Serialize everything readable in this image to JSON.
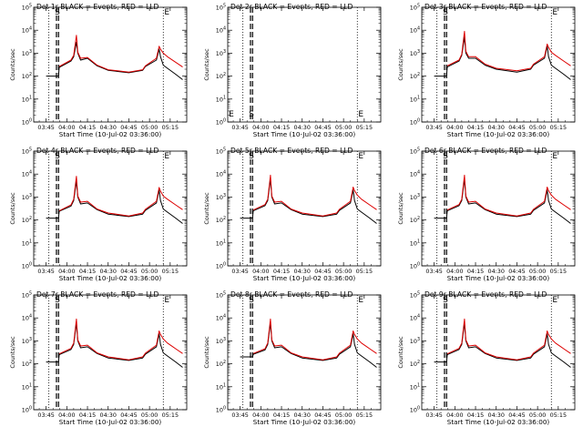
{
  "figure": {
    "xlabel": "Start Time (10-Jul-02 03:36:00)",
    "ylabel": "Counts/sec",
    "marker_S": "S",
    "marker_E": "E"
  },
  "chart_data": [
    {
      "type": "line",
      "title": "Det 1r BLACK = Events, RED = LLD",
      "xlabel": "Start Time (10-Jul-02 03:36:00)",
      "ylabel": "Counts/sec",
      "yscale": "log",
      "ylim": [
        1,
        100000
      ],
      "xticks": [
        "03:45",
        "04:00",
        "04:15",
        "04:30",
        "04:45",
        "05:00",
        "05:15"
      ],
      "yticks": [
        "10^0",
        "10^1",
        "10^2",
        "10^3",
        "10^4",
        "10^5"
      ],
      "x_minutes": [
        0,
        9,
        9.5,
        18,
        20,
        22,
        23,
        25,
        30,
        37,
        45,
        60,
        70,
        72,
        80,
        82,
        83,
        85,
        88,
        94,
        99
      ],
      "series": [
        {
          "name": "BLACK = Events",
          "color": "#000000",
          "values": [
            100,
            100,
            240,
            450,
            700,
            3000,
            1000,
            500,
            600,
            280,
            180,
            140,
            180,
            260,
            500,
            1500,
            700,
            300,
            220,
            120,
            70
          ]
        },
        {
          "name": "RED = LLD",
          "color": "#dd0000",
          "values": [
            null,
            null,
            260,
            500,
            800,
            6000,
            1100,
            600,
            650,
            300,
            190,
            150,
            190,
            280,
            600,
            2000,
            1500,
            1000,
            700,
            400,
            250
          ]
        }
      ]
    },
    {
      "type": "line",
      "title": "Det 2r BLACK = Events, RED = LLD",
      "xlabel": "Start Time (10-Jul-02 03:36:00)",
      "ylabel": "Counts/sec",
      "yscale": "log",
      "ylim": [
        1,
        100000
      ],
      "xticks": [
        "03:45",
        "04:00",
        "04:15",
        "04:30",
        "04:45",
        "05:00",
        "05:15"
      ],
      "yticks": [
        "10^0",
        "10^1",
        "10^2",
        "10^3",
        "10^4",
        "10^5"
      ],
      "x_minutes": [],
      "series": [
        {
          "name": "BLACK = Events",
          "color": "#000000",
          "values": []
        },
        {
          "name": "RED = LLD",
          "color": "#dd0000",
          "values": []
        }
      ]
    },
    {
      "type": "line",
      "title": "Det 3r BLACK = Events, RED = LLD",
      "xlabel": "Start Time (10-Jul-02 03:36:00)",
      "ylabel": "Counts/sec",
      "yscale": "log",
      "ylim": [
        1,
        100000
      ],
      "xticks": [
        "03:45",
        "04:00",
        "04:15",
        "04:30",
        "04:45",
        "05:00",
        "05:15"
      ],
      "yticks": [
        "10^0",
        "10^1",
        "10^2",
        "10^3",
        "10^4",
        "10^5"
      ],
      "x_minutes": [
        0,
        9,
        9.5,
        18,
        20,
        22,
        23,
        25,
        30,
        37,
        45,
        60,
        70,
        72,
        80,
        82,
        83,
        85,
        88,
        94,
        99
      ],
      "series": [
        {
          "name": "BLACK = Events",
          "color": "#000000",
          "values": [
            100,
            100,
            250,
            450,
            800,
            5000,
            1000,
            600,
            600,
            300,
            200,
            150,
            200,
            300,
            600,
            2000,
            700,
            300,
            220,
            120,
            70
          ]
        },
        {
          "name": "RED = LLD",
          "color": "#dd0000",
          "values": [
            null,
            null,
            280,
            500,
            900,
            9000,
            1200,
            700,
            700,
            330,
            220,
            170,
            220,
            330,
            700,
            2500,
            1800,
            1100,
            800,
            450,
            280
          ]
        }
      ]
    },
    {
      "type": "line",
      "title": "Det 4r BLACK = Events, RED = LLD",
      "xlabel": "Start Time (10-Jul-02 03:36:00)",
      "ylabel": "Counts/sec",
      "yscale": "log",
      "ylim": [
        1,
        100000
      ],
      "xticks": [
        "03:45",
        "04:00",
        "04:15",
        "04:30",
        "04:45",
        "05:00",
        "05:15"
      ],
      "yticks": [
        "10^0",
        "10^1",
        "10^2",
        "10^3",
        "10^4",
        "10^5"
      ],
      "x_minutes": [
        0,
        9,
        9.5,
        18,
        20,
        22,
        23,
        25,
        30,
        37,
        45,
        60,
        70,
        72,
        80,
        82,
        83,
        85,
        88,
        94,
        99
      ],
      "series": [
        {
          "name": "BLACK = Events",
          "color": "#000000",
          "values": [
            120,
            120,
            240,
            400,
            700,
            5000,
            1000,
            500,
            550,
            280,
            180,
            140,
            180,
            260,
            550,
            2000,
            700,
            300,
            220,
            120,
            70
          ]
        },
        {
          "name": "RED = LLD",
          "color": "#dd0000",
          "values": [
            null,
            null,
            250,
            450,
            800,
            8000,
            1100,
            600,
            650,
            300,
            200,
            150,
            200,
            290,
            650,
            2600,
            1800,
            1100,
            800,
            450,
            280
          ]
        }
      ]
    },
    {
      "type": "line",
      "title": "Det 5r BLACK = Events, RED = LLD",
      "xlabel": "Start Time (10-Jul-02 03:36:00)",
      "ylabel": "Counts/sec",
      "yscale": "log",
      "ylim": [
        1,
        100000
      ],
      "xticks": [
        "03:45",
        "04:00",
        "04:15",
        "04:30",
        "04:45",
        "05:00",
        "05:15"
      ],
      "yticks": [
        "10^0",
        "10^1",
        "10^2",
        "10^3",
        "10^4",
        "10^5"
      ],
      "x_minutes": [
        0,
        9,
        9.5,
        18,
        20,
        22,
        23,
        25,
        30,
        37,
        45,
        60,
        70,
        72,
        80,
        82,
        83,
        85,
        88,
        94,
        99
      ],
      "series": [
        {
          "name": "BLACK = Events",
          "color": "#000000",
          "values": [
            120,
            120,
            250,
            420,
            700,
            6000,
            1000,
            500,
            550,
            280,
            180,
            140,
            180,
            260,
            550,
            2000,
            700,
            300,
            220,
            120,
            70
          ]
        },
        {
          "name": "RED = LLD",
          "color": "#dd0000",
          "values": [
            null,
            null,
            270,
            470,
            800,
            9000,
            1100,
            600,
            650,
            300,
            200,
            150,
            200,
            290,
            650,
            2700,
            1900,
            1200,
            800,
            450,
            280
          ]
        }
      ]
    },
    {
      "type": "line",
      "title": "Det 6r BLACK = Events, RED = LLD",
      "xlabel": "Start Time (10-Jul-02 03:36:00)",
      "ylabel": "Counts/sec",
      "yscale": "log",
      "ylim": [
        1,
        100000
      ],
      "xticks": [
        "03:45",
        "04:00",
        "04:15",
        "04:30",
        "04:45",
        "05:00",
        "05:15"
      ],
      "yticks": [
        "10^0",
        "10^1",
        "10^2",
        "10^3",
        "10^4",
        "10^5"
      ],
      "x_minutes": [
        0,
        9,
        9.5,
        18,
        20,
        22,
        23,
        25,
        30,
        37,
        45,
        60,
        70,
        72,
        80,
        82,
        83,
        85,
        88,
        94,
        99
      ],
      "series": [
        {
          "name": "BLACK = Events",
          "color": "#000000",
          "values": [
            120,
            120,
            250,
            420,
            700,
            6000,
            1000,
            500,
            550,
            280,
            180,
            140,
            180,
            260,
            550,
            2000,
            700,
            300,
            220,
            120,
            70
          ]
        },
        {
          "name": "RED = LLD",
          "color": "#dd0000",
          "values": [
            null,
            null,
            270,
            470,
            800,
            9000,
            1100,
            600,
            650,
            300,
            200,
            150,
            200,
            290,
            650,
            2700,
            1900,
            1200,
            800,
            450,
            280
          ]
        }
      ]
    },
    {
      "type": "line",
      "title": "Det 7r BLACK = Events, RED = LLD",
      "xlabel": "Start Time (10-Jul-02 03:36:00)",
      "ylabel": "Counts/sec",
      "yscale": "log",
      "ylim": [
        1,
        100000
      ],
      "xticks": [
        "03:45",
        "04:00",
        "04:15",
        "04:30",
        "04:45",
        "05:00",
        "05:15"
      ],
      "yticks": [
        "10^0",
        "10^1",
        "10^2",
        "10^3",
        "10^4",
        "10^5"
      ],
      "x_minutes": [
        0,
        9,
        9.5,
        18,
        20,
        22,
        23,
        25,
        30,
        37,
        45,
        60,
        70,
        72,
        80,
        82,
        83,
        85,
        88,
        94,
        99
      ],
      "series": [
        {
          "name": "BLACK = Events",
          "color": "#000000",
          "values": [
            120,
            120,
            250,
            420,
            700,
            6000,
            1000,
            500,
            550,
            280,
            180,
            140,
            180,
            260,
            550,
            2000,
            700,
            300,
            220,
            120,
            70
          ]
        },
        {
          "name": "RED = LLD",
          "color": "#dd0000",
          "values": [
            null,
            null,
            270,
            470,
            800,
            9000,
            1100,
            600,
            650,
            300,
            200,
            150,
            200,
            290,
            650,
            2700,
            1900,
            1200,
            800,
            450,
            280
          ]
        }
      ]
    },
    {
      "type": "line",
      "title": "Det 8r BLACK = Events, RED = LLD",
      "xlabel": "Start Time (10-Jul-02 03:36:00)",
      "ylabel": "Counts/sec",
      "yscale": "log",
      "ylim": [
        1,
        100000
      ],
      "xticks": [
        "03:45",
        "04:00",
        "04:15",
        "04:30",
        "04:45",
        "05:00",
        "05:15"
      ],
      "yticks": [
        "10^0",
        "10^1",
        "10^2",
        "10^3",
        "10^4",
        "10^5"
      ],
      "x_minutes": [
        0,
        9,
        9.5,
        18,
        20,
        22,
        23,
        25,
        30,
        37,
        45,
        60,
        70,
        72,
        80,
        82,
        83,
        85,
        88,
        94,
        99
      ],
      "series": [
        {
          "name": "BLACK = Events",
          "color": "#000000",
          "values": [
            200,
            200,
            260,
            400,
            700,
            6000,
            1000,
            500,
            550,
            280,
            180,
            140,
            180,
            260,
            550,
            2000,
            700,
            300,
            220,
            120,
            70
          ]
        },
        {
          "name": "RED = LLD",
          "color": "#dd0000",
          "values": [
            null,
            null,
            280,
            450,
            800,
            9000,
            1100,
            600,
            650,
            300,
            200,
            150,
            200,
            290,
            650,
            2700,
            1900,
            1200,
            800,
            450,
            280
          ]
        }
      ]
    },
    {
      "type": "line",
      "title": "Det 9r BLACK = Events, RED = LLD",
      "xlabel": "Start Time (10-Jul-02 03:36:00)",
      "ylabel": "Counts/sec",
      "yscale": "log",
      "ylim": [
        1,
        100000
      ],
      "xticks": [
        "03:45",
        "04:00",
        "04:15",
        "04:30",
        "04:45",
        "05:00",
        "05:15"
      ],
      "yticks": [
        "10^0",
        "10^1",
        "10^2",
        "10^3",
        "10^4",
        "10^5"
      ],
      "x_minutes": [
        0,
        9,
        9.5,
        18,
        20,
        22,
        23,
        25,
        30,
        37,
        45,
        60,
        70,
        72,
        80,
        82,
        83,
        85,
        88,
        94,
        99
      ],
      "series": [
        {
          "name": "BLACK = Events",
          "color": "#000000",
          "values": [
            120,
            120,
            250,
            420,
            700,
            6000,
            1000,
            500,
            550,
            280,
            180,
            140,
            180,
            260,
            550,
            2000,
            700,
            300,
            220,
            120,
            70
          ]
        },
        {
          "name": "RED = LLD",
          "color": "#dd0000",
          "values": [
            null,
            null,
            270,
            470,
            800,
            9000,
            1100,
            600,
            650,
            300,
            200,
            150,
            200,
            290,
            650,
            2700,
            1900,
            1200,
            800,
            450,
            280
          ]
        }
      ]
    }
  ]
}
